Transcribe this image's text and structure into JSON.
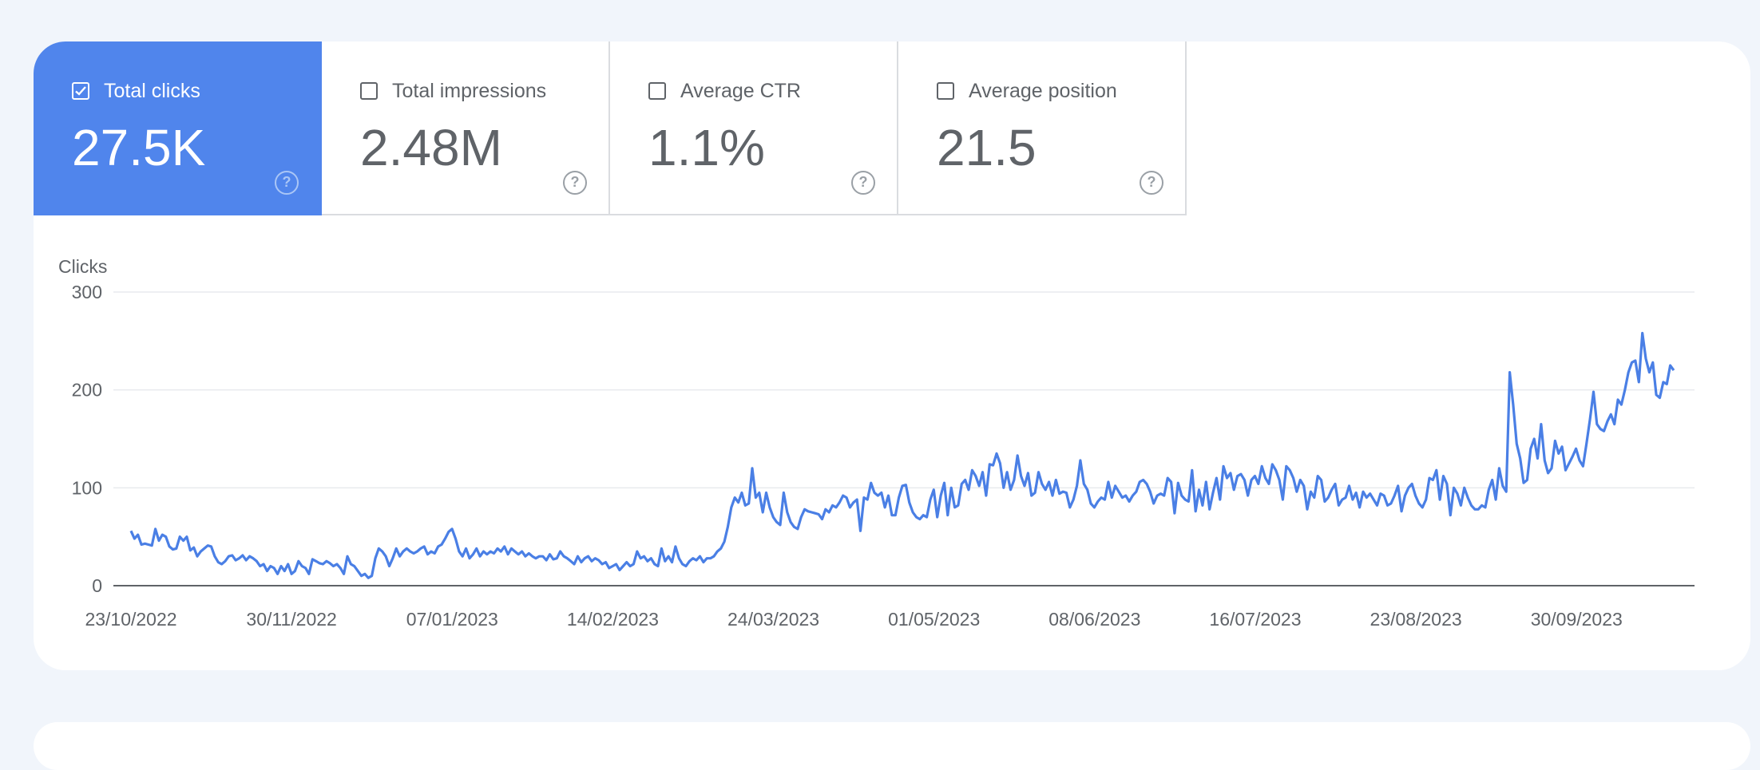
{
  "metrics": [
    {
      "label": "Total clicks",
      "value": "27.5K",
      "checked": true
    },
    {
      "label": "Total impressions",
      "value": "2.48M",
      "checked": false
    },
    {
      "label": "Average CTR",
      "value": "1.1%",
      "checked": false
    },
    {
      "label": "Average position",
      "value": "21.5",
      "checked": false
    }
  ],
  "help_glyph": "?",
  "colors": {
    "accent": "#5085ec",
    "line": "#4a7fe5",
    "grid": "#e8eaed",
    "axis": "#5f6368",
    "text": "#5f6368"
  },
  "chart_data": {
    "type": "line",
    "ylabel": "Clicks",
    "ylim": [
      0,
      300
    ],
    "yticks": [
      0,
      100,
      200,
      300
    ],
    "grid": true,
    "x_start": "23/10/2022",
    "x_end": "23/10/2023",
    "xticks": [
      "23/10/2022",
      "30/11/2022",
      "07/01/2023",
      "14/02/2023",
      "24/03/2023",
      "01/05/2023",
      "08/06/2023",
      "16/07/2023",
      "23/08/2023",
      "30/09/2023"
    ],
    "series": [
      {
        "values": [
          56,
          48,
          52,
          42,
          43,
          42,
          41,
          58,
          46,
          52,
          50,
          40,
          37,
          38,
          50,
          46,
          50,
          36,
          39,
          30,
          35,
          38,
          41,
          40,
          30,
          24,
          22,
          25,
          30,
          31,
          26,
          28,
          31,
          26,
          30,
          28,
          25,
          20,
          22,
          15,
          20,
          18,
          12,
          20,
          15,
          22,
          12,
          15,
          25,
          20,
          18,
          12,
          27,
          25,
          23,
          22,
          25,
          23,
          20,
          22,
          18,
          12,
          30,
          22,
          20,
          15,
          10,
          12,
          8,
          10,
          28,
          38,
          35,
          30,
          20,
          28,
          38,
          30,
          35,
          38,
          35,
          33,
          35,
          38,
          40,
          32,
          35,
          33,
          40,
          42,
          48,
          55,
          58,
          48,
          35,
          30,
          38,
          28,
          32,
          38,
          30,
          35,
          32,
          35,
          33,
          38,
          35,
          40,
          32,
          38,
          35,
          32,
          35,
          30,
          33,
          30,
          28,
          30,
          30,
          26,
          32,
          27,
          28,
          35,
          30,
          28,
          25,
          22,
          30,
          24,
          28,
          30,
          25,
          28,
          26,
          22,
          24,
          18,
          20,
          22,
          16,
          20,
          24,
          20,
          22,
          35,
          28,
          30,
          25,
          28,
          22,
          20,
          38,
          25,
          30,
          24,
          40,
          28,
          22,
          20,
          25,
          28,
          26,
          30,
          24,
          28,
          28,
          30,
          35,
          38,
          45,
          60,
          80,
          90,
          85,
          95,
          82,
          84,
          120,
          90,
          95,
          75,
          95,
          80,
          70,
          65,
          62,
          95,
          75,
          65,
          60,
          58,
          70,
          78,
          76,
          75,
          74,
          73,
          68,
          78,
          75,
          82,
          80,
          85,
          92,
          90,
          80,
          85,
          88,
          56,
          90,
          88,
          105,
          95,
          92,
          95,
          80,
          92,
          72,
          72,
          90,
          102,
          103,
          85,
          75,
          70,
          68,
          72,
          70,
          88,
          98,
          70,
          92,
          105,
          72,
          100,
          80,
          82,
          104,
          108,
          98,
          118,
          112,
          102,
          116,
          92,
          124,
          123,
          135,
          125,
          100,
          116,
          98,
          108,
          133,
          112,
          102,
          115,
          92,
          95,
          116,
          104,
          98,
          106,
          92,
          108,
          94,
          96,
          95,
          80,
          88,
          102,
          128,
          104,
          98,
          84,
          80,
          86,
          90,
          88,
          106,
          90,
          102,
          96,
          90,
          92,
          86,
          92,
          96,
          106,
          108,
          104,
          96,
          84,
          92,
          94,
          92,
          110,
          106,
          74,
          105,
          92,
          88,
          86,
          118,
          76,
          98,
          82,
          106,
          78,
          95,
          110,
          88,
          122,
          110,
          115,
          98,
          112,
          114,
          108,
          92,
          108,
          112,
          104,
          122,
          110,
          104,
          124,
          118,
          108,
          88,
          122,
          118,
          110,
          96,
          108,
          102,
          78,
          96,
          90,
          112,
          108,
          86,
          90,
          98,
          104,
          82,
          88,
          90,
          102,
          88,
          95,
          80,
          96,
          90,
          94,
          88,
          82,
          94,
          92,
          82,
          84,
          92,
          102,
          76,
          92,
          100,
          104,
          92,
          84,
          80,
          88,
          110,
          108,
          118,
          88,
          112,
          104,
          72,
          100,
          94,
          82,
          100,
          90,
          82,
          78,
          78,
          82,
          80,
          98,
          108,
          88,
          120,
          102,
          96,
          218,
          185,
          145,
          130,
          105,
          108,
          140,
          150,
          130,
          165,
          128,
          115,
          120,
          148,
          135,
          142,
          118,
          125,
          132,
          140,
          128,
          122,
          145,
          170,
          198,
          165,
          160,
          158,
          168,
          175,
          165,
          190,
          185,
          200,
          218,
          228,
          230,
          208,
          258,
          232,
          218,
          228,
          195,
          192,
          208,
          206,
          225,
          220
        ]
      }
    ]
  }
}
